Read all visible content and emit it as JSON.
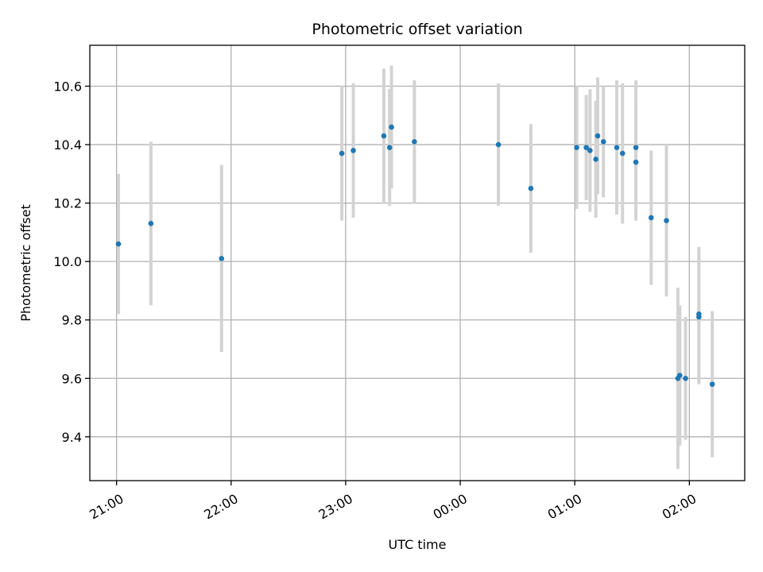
{
  "chart_data": {
    "type": "scatter",
    "title": "Photometric offset variation",
    "xlabel": "UTC time",
    "ylabel": "Photometric offset",
    "xlim": [
      "20:46",
      "02:29"
    ],
    "ylim": [
      9.25,
      10.74
    ],
    "grid": true,
    "x_ticks": [
      "21:00",
      "22:00",
      "23:00",
      "00:00",
      "01:00",
      "02:00"
    ],
    "y_ticks": [
      "9.4",
      "9.6",
      "9.8",
      "10.0",
      "10.2",
      "10.4",
      "10.6"
    ],
    "marker_color": "#1f77b4",
    "errorbar_color": "#d3d3d3",
    "points": [
      {
        "x": "21:01",
        "y": 10.06,
        "err": 0.24
      },
      {
        "x": "21:18",
        "y": 10.13,
        "err": 0.28
      },
      {
        "x": "21:55",
        "y": 10.01,
        "err": 0.32
      },
      {
        "x": "22:58",
        "y": 10.37,
        "err": 0.23
      },
      {
        "x": "23:04",
        "y": 10.38,
        "err": 0.23
      },
      {
        "x": "23:20",
        "y": 10.43,
        "err": 0.23
      },
      {
        "x": "23:23",
        "y": 10.39,
        "err": 0.2
      },
      {
        "x": "23:24",
        "y": 10.46,
        "err": 0.21
      },
      {
        "x": "23:36",
        "y": 10.41,
        "err": 0.21
      },
      {
        "x": "00:20",
        "y": 10.4,
        "err": 0.21
      },
      {
        "x": "00:37",
        "y": 10.25,
        "err": 0.22
      },
      {
        "x": "01:01",
        "y": 10.39,
        "err": 0.21
      },
      {
        "x": "01:06",
        "y": 10.39,
        "err": 0.18
      },
      {
        "x": "01:08",
        "y": 10.38,
        "err": 0.21
      },
      {
        "x": "01:11",
        "y": 10.35,
        "err": 0.2
      },
      {
        "x": "01:12",
        "y": 10.43,
        "err": 0.2
      },
      {
        "x": "01:15",
        "y": 10.41,
        "err": 0.19
      },
      {
        "x": "01:22",
        "y": 10.39,
        "err": 0.23
      },
      {
        "x": "01:25",
        "y": 10.37,
        "err": 0.24
      },
      {
        "x": "01:32",
        "y": 10.39,
        "err": 0.23
      },
      {
        "x": "01:32",
        "y": 10.34,
        "err": 0.2
      },
      {
        "x": "01:40",
        "y": 10.15,
        "err": 0.23
      },
      {
        "x": "01:48",
        "y": 10.14,
        "err": 0.26
      },
      {
        "x": "01:54",
        "y": 9.6,
        "err": 0.31
      },
      {
        "x": "01:55",
        "y": 9.61,
        "err": 0.24
      },
      {
        "x": "01:58",
        "y": 9.6,
        "err": 0.21
      },
      {
        "x": "02:05",
        "y": 9.82,
        "err": 0.23
      },
      {
        "x": "02:05",
        "y": 9.81,
        "err": 0.23
      },
      {
        "x": "02:12",
        "y": 9.58,
        "err": 0.25
      }
    ]
  }
}
